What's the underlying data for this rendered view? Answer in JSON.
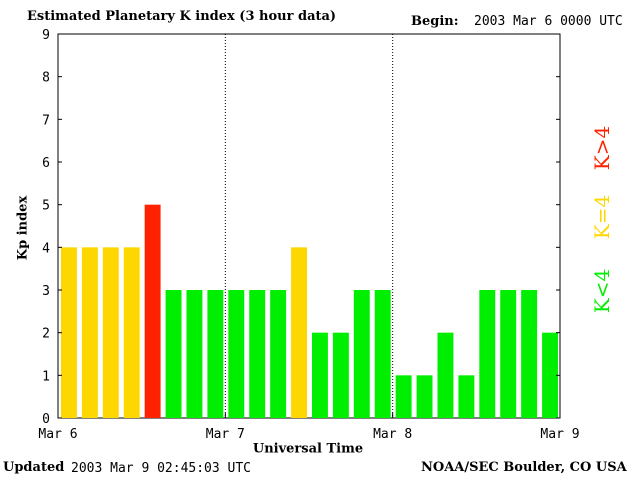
{
  "header": {
    "title": "Estimated Planetary K index (3 hour data)",
    "begin_label": "Begin:",
    "begin_value": "2003 Mar 6 0000 UTC"
  },
  "footer": {
    "updated_label": "Updated",
    "updated_value": "2003 Mar  9 02:45:03 UTC",
    "credit": "NOAA/SEC Boulder, CO USA"
  },
  "legend": {
    "high": {
      "label": "K>4",
      "color": "#ff2200"
    },
    "mid": {
      "label": "K=4",
      "color": "#ffd700"
    },
    "low": {
      "label": "K<4",
      "color": "#00ee00"
    }
  },
  "chart_data": {
    "type": "bar",
    "title": "Estimated Planetary K index (3 hour data)",
    "xlabel": "Universal Time",
    "ylabel": "Kp index",
    "ylim": [
      0,
      9
    ],
    "yticks": [
      "0",
      "1",
      "2",
      "3",
      "4",
      "5",
      "6",
      "7",
      "8",
      "9"
    ],
    "xticks": [
      "Mar 6",
      "Mar 7",
      "Mar 8",
      "Mar 9"
    ],
    "day_dividers": [
      "Mar 7",
      "Mar 8"
    ],
    "interval_hours": 3,
    "values": [
      4,
      4,
      4,
      4,
      5,
      3,
      3,
      3,
      3,
      3,
      3,
      4,
      2,
      2,
      3,
      3,
      1,
      1,
      2,
      1,
      3,
      3,
      3,
      2
    ],
    "color_rule": {
      "gt4": "#ff2200",
      "eq4": "#ffd700",
      "lt4": "#00ee00"
    }
  }
}
